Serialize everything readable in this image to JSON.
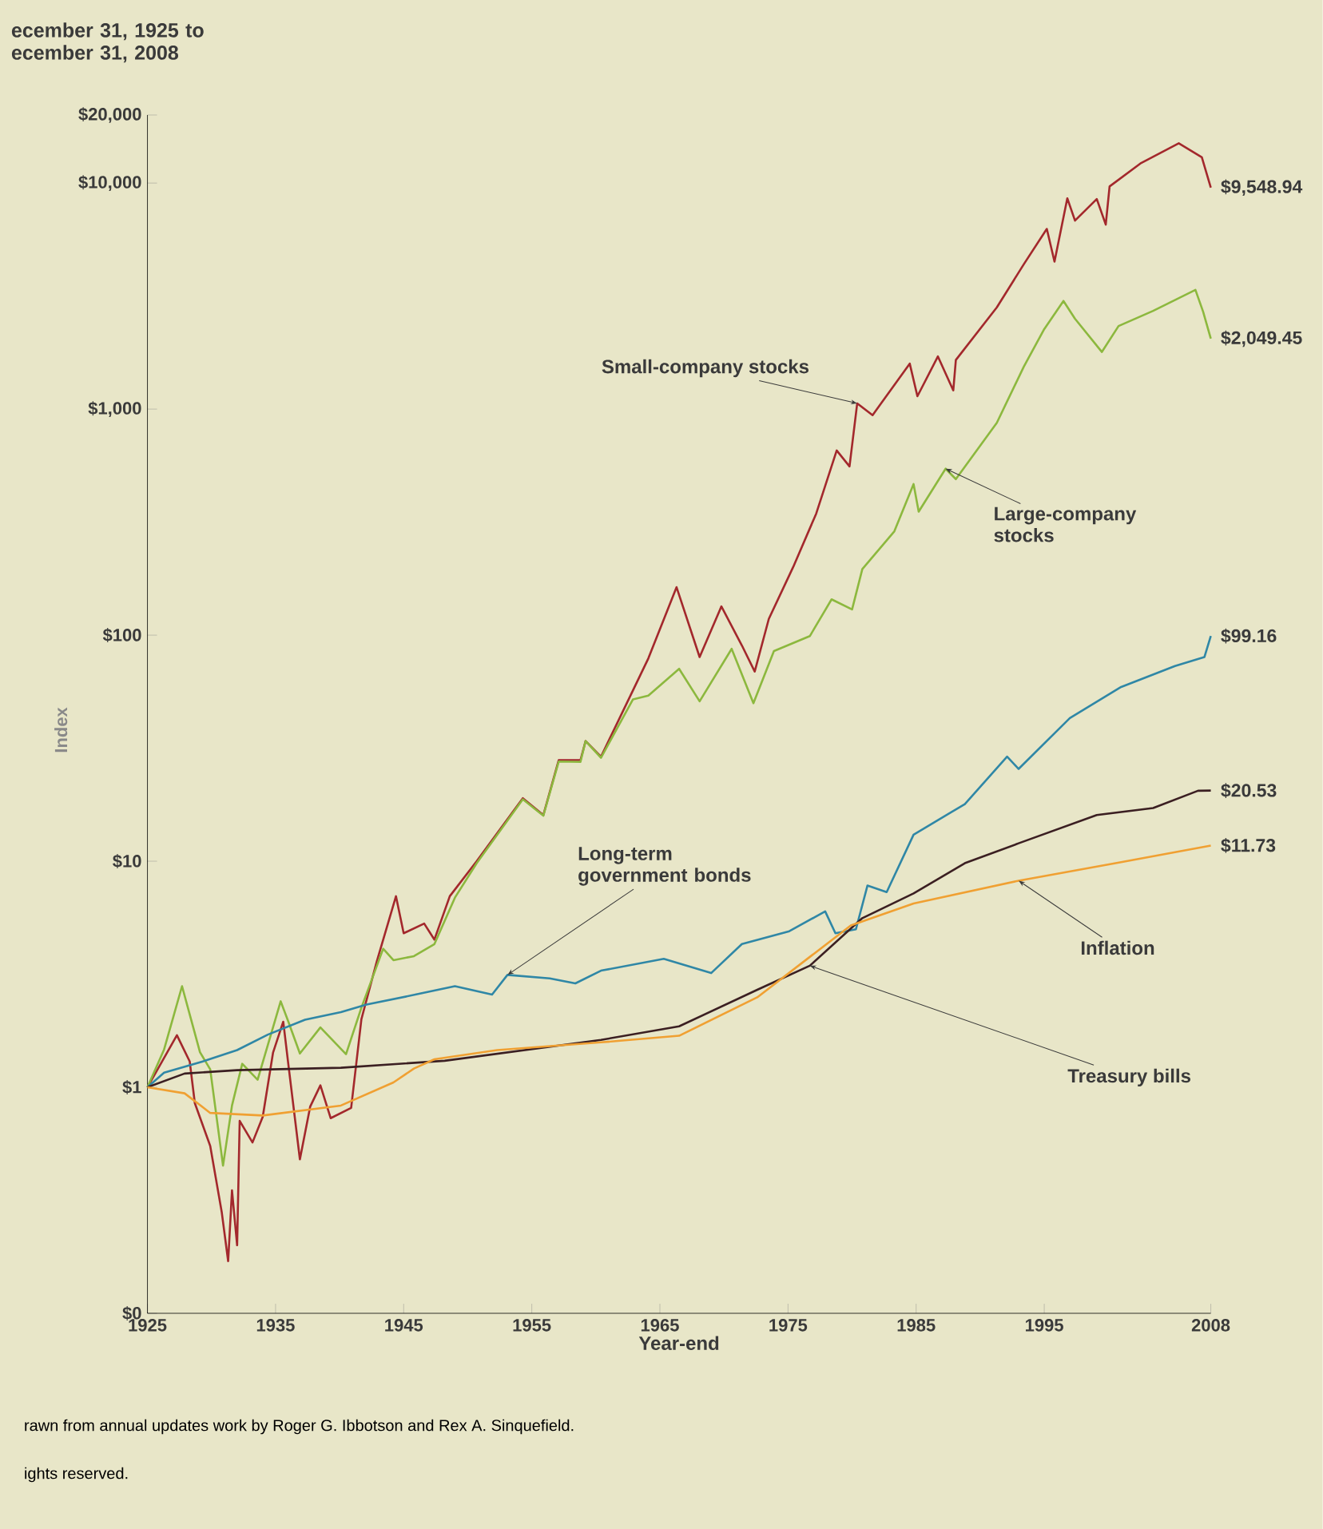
{
  "chart_data": {
    "type": "line",
    "title": "ecember 31, 1925 to ecember 31, 2008",
    "xlabel": "Year-end",
    "ylabel": "Index",
    "log": "y",
    "xlim": [
      1925,
      2008
    ],
    "xticks": [
      1925,
      1935,
      1945,
      1955,
      1965,
      1975,
      1985,
      1995,
      2008
    ],
    "ylim": [
      0.1,
      20000
    ],
    "yticks": [
      {
        "value": 0.1,
        "label": "$0"
      },
      {
        "value": 1,
        "label": "$1"
      },
      {
        "value": 10,
        "label": "$10"
      },
      {
        "value": 100,
        "label": "$100"
      },
      {
        "value": 1000,
        "label": "$1,000"
      },
      {
        "value": 10000,
        "label": "$10,000"
      },
      {
        "value": 20000,
        "label": "$20,000"
      }
    ],
    "series": [
      {
        "name": "Small-company stocks",
        "color": "#a3282c",
        "x": [
          1925,
          1927.3,
          1928.3,
          1928.7,
          1929.9,
          1930.8,
          1931.3,
          1931.6,
          1932.0,
          1932.2,
          1933.2,
          1934.0,
          1934.8,
          1935.6,
          1936.0,
          1936.9,
          1937.7,
          1938.5,
          1939.3,
          1940.9,
          1941.7,
          1942.9,
          1944.4,
          1945.0,
          1946.6,
          1947.4,
          1948.6,
          1950.7,
          1954.3,
          1955.9,
          1957.1,
          1958.8,
          1959.2,
          1960.4,
          1962.9,
          1964.1,
          1966.3,
          1968.1,
          1969.8,
          1971.4,
          1972.4,
          1973.5,
          1975.4,
          1977.2,
          1978.8,
          1979.8,
          1980.4,
          1981.6,
          1984.5,
          1985.1,
          1986.7,
          1987.9,
          1988.1,
          1991.3,
          1993.4,
          1995.2,
          1995.8,
          1996.8,
          1997.4,
          1999.1,
          1999.8,
          2000.1,
          2002.5,
          2005.5,
          2007.3,
          2008
        ],
        "values": [
          1.0,
          1.7,
          1.3,
          0.85,
          0.55,
          0.28,
          0.17,
          0.35,
          0.2,
          0.71,
          0.57,
          0.74,
          1.42,
          1.95,
          1.26,
          0.48,
          0.82,
          1.02,
          0.73,
          0.81,
          2.0,
          3.6,
          7.0,
          4.8,
          5.3,
          4.5,
          7.0,
          10,
          19,
          16,
          28,
          28,
          34,
          29,
          57,
          79,
          163,
          80,
          134,
          90,
          69,
          118,
          200,
          345,
          656,
          558,
          1060,
          940,
          1590,
          1140,
          1710,
          1210,
          1650,
          2820,
          4370,
          6270,
          4490,
          8560,
          6820,
          8500,
          6550,
          9660,
          12200,
          15000,
          13000,
          9548.94
        ],
        "value_labels": [
          null,
          null,
          null,
          null,
          null,
          null,
          null,
          null,
          null,
          null,
          null,
          null,
          null,
          null,
          null,
          null,
          null,
          null,
          null,
          null,
          null,
          null,
          null,
          null,
          null,
          null,
          null,
          null,
          null,
          null,
          null,
          null,
          null,
          null,
          null,
          null,
          null,
          null,
          null,
          null,
          null,
          null,
          null,
          null,
          null,
          null,
          null,
          null,
          null,
          null,
          null,
          null,
          null,
          null,
          null,
          null,
          null,
          null,
          null,
          null,
          null,
          null,
          null,
          null,
          null,
          "$9,548.94"
        ]
      },
      {
        "name": "Large-company stocks",
        "color": "#8cb83e",
        "x": [
          1925,
          1926.3,
          1927.7,
          1929.1,
          1929.9,
          1930.9,
          1931.6,
          1932.4,
          1933.6,
          1935.4,
          1936.0,
          1936.9,
          1938.5,
          1940.5,
          1941.7,
          1943.4,
          1944.2,
          1945.8,
          1947.4,
          1949.0,
          1950.7,
          1954.3,
          1955.9,
          1957.1,
          1958.8,
          1959.2,
          1960.4,
          1962.9,
          1964.1,
          1966.5,
          1968.1,
          1970.6,
          1972.3,
          1973.9,
          1976.7,
          1978.4,
          1980.0,
          1980.8,
          1983.3,
          1984.8,
          1985.2,
          1987.3,
          1988.1,
          1991.3,
          1993.4,
          1995.0,
          1996.5,
          1997.4,
          1999.5,
          2000.8,
          2003.5,
          2006.8,
          2007.4,
          2008
        ],
        "values": [
          1.0,
          1.47,
          2.8,
          1.43,
          1.2,
          0.45,
          0.83,
          1.27,
          1.08,
          2.4,
          1.95,
          1.41,
          1.84,
          1.4,
          2.25,
          4.1,
          3.65,
          3.8,
          4.3,
          6.9,
          9.8,
          18.8,
          15.9,
          27.6,
          27.5,
          34,
          28.7,
          52,
          54,
          71,
          51,
          87,
          50,
          85,
          99,
          144,
          130,
          196,
          288,
          466,
          352,
          545,
          490,
          870,
          1540,
          2260,
          3010,
          2510,
          1790,
          2330,
          2720,
          3370,
          2700,
          2049.45
        ],
        "value_labels": [
          null,
          null,
          null,
          null,
          null,
          null,
          null,
          null,
          null,
          null,
          null,
          null,
          null,
          null,
          null,
          null,
          null,
          null,
          null,
          null,
          null,
          null,
          null,
          null,
          null,
          null,
          null,
          null,
          null,
          null,
          null,
          null,
          null,
          null,
          null,
          null,
          null,
          null,
          null,
          null,
          null,
          null,
          null,
          null,
          null,
          null,
          null,
          null,
          null,
          null,
          null,
          null,
          null,
          "$2,049.45"
        ]
      },
      {
        "name": "Long-term government bonds",
        "color": "#2f87a6",
        "x": [
          1925,
          1926.3,
          1929.5,
          1932.0,
          1934.4,
          1937.3,
          1940.1,
          1942.1,
          1946.2,
          1949.0,
          1951.9,
          1953.1,
          1956.4,
          1958.4,
          1960.4,
          1965.3,
          1969.0,
          1971.4,
          1975.1,
          1977.9,
          1978.7,
          1980.3,
          1981.2,
          1982.7,
          1984.8,
          1988.8,
          1992.1,
          1993.0,
          1997.0,
          2001.0,
          2005.2,
          2007.5,
          2008
        ],
        "values": [
          1.0,
          1.16,
          1.31,
          1.46,
          1.71,
          1.99,
          2.15,
          2.32,
          2.59,
          2.8,
          2.57,
          3.14,
          3.03,
          2.88,
          3.28,
          3.7,
          3.2,
          4.3,
          4.9,
          6.0,
          4.8,
          5.0,
          7.8,
          7.3,
          13.1,
          17.9,
          29,
          25.6,
          43,
          59,
          73,
          80,
          99.16
        ],
        "value_labels": [
          null,
          null,
          null,
          null,
          null,
          null,
          null,
          null,
          null,
          null,
          null,
          null,
          null,
          null,
          null,
          null,
          null,
          null,
          null,
          null,
          null,
          null,
          null,
          null,
          null,
          null,
          null,
          null,
          null,
          null,
          null,
          null,
          "$99.16"
        ]
      },
      {
        "name": "Treasury bills",
        "color": "#3b1f22",
        "x": [
          1925,
          1927.9,
          1932.0,
          1940.1,
          1948.2,
          1960.4,
          1966.5,
          1972.6,
          1976.7,
          1980.8,
          1984.8,
          1988.8,
          1993.0,
          1999.1,
          2003.5,
          2007,
          2008
        ],
        "values": [
          1.0,
          1.15,
          1.19,
          1.22,
          1.31,
          1.62,
          1.86,
          2.7,
          3.45,
          5.6,
          7.2,
          9.8,
          12,
          16,
          17.2,
          20.5,
          20.53
        ],
        "value_labels": [
          null,
          null,
          null,
          null,
          null,
          null,
          null,
          null,
          null,
          null,
          null,
          null,
          null,
          null,
          null,
          null,
          "$20.53"
        ]
      },
      {
        "name": "Inflation",
        "color": "#f0a032",
        "x": [
          1925,
          1927.9,
          1929.9,
          1934.0,
          1940.1,
          1944.2,
          1945.8,
          1947.4,
          1952.3,
          1960.4,
          1966.5,
          1972.6,
          1979.9,
          1984.8,
          1993.0,
          2001.0,
          2008
        ],
        "values": [
          1.0,
          0.94,
          0.77,
          0.75,
          0.83,
          1.05,
          1.21,
          1.33,
          1.46,
          1.58,
          1.69,
          2.5,
          5.2,
          6.5,
          8.2,
          9.9,
          11.73
        ],
        "value_labels": [
          null,
          null,
          null,
          null,
          null,
          null,
          null,
          null,
          null,
          null,
          null,
          null,
          null,
          null,
          null,
          null,
          "$11.73"
        ]
      }
    ],
    "annotations": [
      "rawn from annual updates work by Roger G. Ibbotson and Rex A. Sinquefield.",
      "ights reserved."
    ]
  }
}
